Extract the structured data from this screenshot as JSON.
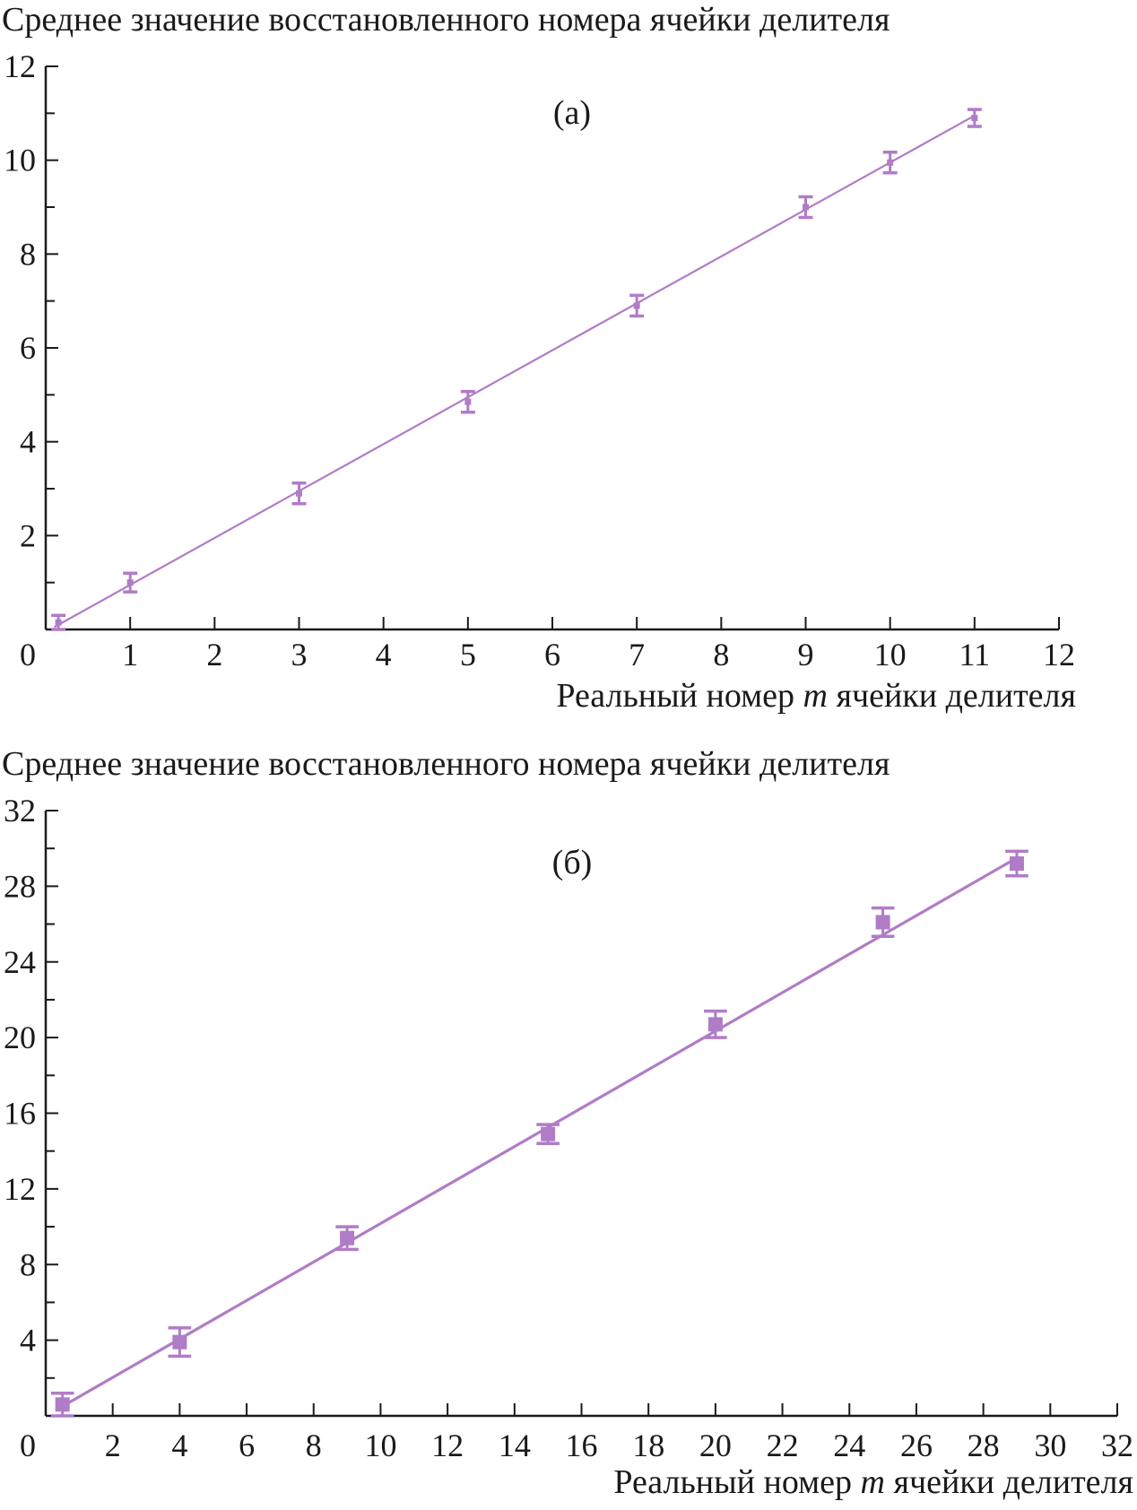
{
  "chart_data": [
    {
      "type": "scatter",
      "panel_label": "(а)",
      "ylabel": "Среднее значение восстановленного номера ячейки делителя",
      "xlabel_parts": [
        "Реальный номер ",
        "m",
        " ячейки делителя"
      ],
      "xlim": [
        0,
        12
      ],
      "ylim": [
        0,
        12
      ],
      "x_ticks": [
        0,
        1,
        2,
        3,
        4,
        5,
        6,
        7,
        8,
        9,
        10,
        11,
        12
      ],
      "y_ticks": [
        2,
        4,
        6,
        8,
        10,
        12
      ],
      "y_minor_step": 1,
      "color": "#b07cc6",
      "marker": "cross",
      "points": [
        {
          "x": 0.15,
          "y": 0.15,
          "err": 0.15
        },
        {
          "x": 1,
          "y": 1.0,
          "err": 0.2
        },
        {
          "x": 3,
          "y": 2.9,
          "err": 0.22
        },
        {
          "x": 5,
          "y": 4.85,
          "err": 0.22
        },
        {
          "x": 7,
          "y": 6.9,
          "err": 0.22
        },
        {
          "x": 9,
          "y": 9.0,
          "err": 0.22
        },
        {
          "x": 10,
          "y": 9.95,
          "err": 0.22
        },
        {
          "x": 11,
          "y": 10.9,
          "err": 0.18
        }
      ],
      "fit_line": {
        "x": [
          0.1,
          11
        ],
        "y": [
          0.05,
          10.95
        ]
      }
    },
    {
      "type": "scatter",
      "panel_label": "(б)",
      "ylabel": "Среднее значение восстановленного номера ячейки делителя",
      "xlabel_parts": [
        "Реальный номер ",
        "m",
        " ячейки делителя"
      ],
      "xlim": [
        0,
        32
      ],
      "ylim": [
        0,
        32
      ],
      "x_ticks": [
        0,
        2,
        4,
        6,
        8,
        10,
        12,
        14,
        16,
        18,
        20,
        22,
        24,
        26,
        28,
        30,
        32
      ],
      "y_ticks": [
        4,
        8,
        12,
        16,
        20,
        24,
        28,
        32
      ],
      "y_minor_step": 2,
      "color": "#b07cc6",
      "marker": "square",
      "points": [
        {
          "x": 0.5,
          "y": 0.6,
          "err": 0.6
        },
        {
          "x": 4,
          "y": 3.9,
          "err": 0.75
        },
        {
          "x": 9,
          "y": 9.4,
          "err": 0.6
        },
        {
          "x": 15,
          "y": 14.9,
          "err": 0.5
        },
        {
          "x": 20,
          "y": 20.7,
          "err": 0.7
        },
        {
          "x": 25,
          "y": 26.1,
          "err": 0.75
        },
        {
          "x": 29,
          "y": 29.2,
          "err": 0.65
        }
      ],
      "fit_line": {
        "x": [
          0.3,
          29
        ],
        "y": [
          0.3,
          29.5
        ]
      }
    }
  ]
}
